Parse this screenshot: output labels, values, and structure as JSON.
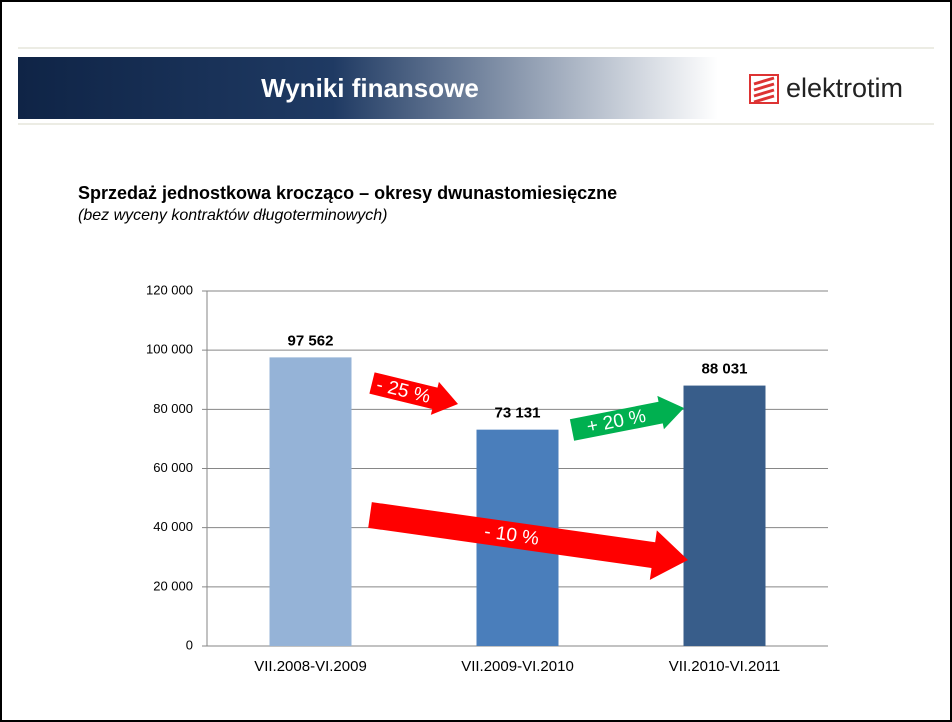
{
  "header": {
    "title": "Wyniki finansowe",
    "logo": "elektrotim"
  },
  "chart_data": {
    "type": "bar",
    "title": "Sprzedaż jednostkowa krocząco – okresy dwunastomiesięczne",
    "subtitle": "(bez wyceny kontraktów długoterminowych)",
    "categories": [
      "VII.2008-VI.2009",
      "VII.2009-VI.2010",
      "VII.2010-VI.2011"
    ],
    "values": [
      97562,
      73131,
      88031
    ],
    "value_labels": [
      "97 562",
      "73 131",
      "88 031"
    ],
    "colors": [
      "#95b3d7",
      "#4a7ebb",
      "#385d8a"
    ],
    "ylim": [
      0,
      120000
    ],
    "yticks": [
      0,
      {
        "value": 20000,
        "label": "20 000"
      },
      {
        "value": 40000,
        "label": "40 000"
      },
      {
        "value": 60000,
        "label": "60 000"
      },
      {
        "value": 80000,
        "label": "80 000"
      },
      {
        "value": 100000,
        "label": "100 000"
      },
      {
        "value": 120000,
        "label": "120 000"
      }
    ],
    "grid": true,
    "annotations": [
      {
        "text": "- 25 %",
        "color": "#ff0000"
      },
      {
        "text": "+ 20 %",
        "color": "#00b050"
      },
      {
        "text": "- 10 %",
        "color": "#ff0000"
      }
    ]
  }
}
